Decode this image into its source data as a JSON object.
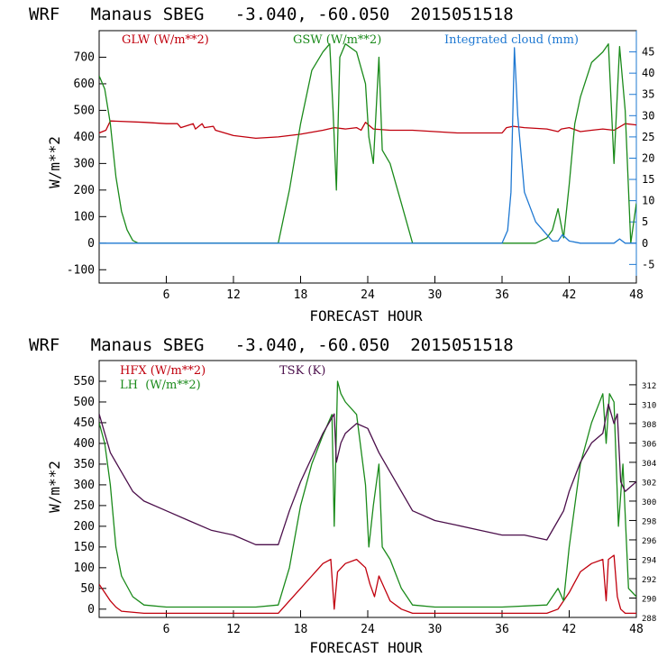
{
  "chart_data": [
    {
      "type": "line",
      "title": "WRF   Manaus SBEG   -3.040, -60.050  2015051518",
      "xlabel": "FORECAST HOUR",
      "ylabel": "W/m**2",
      "xlim": [
        0,
        48
      ],
      "ylim": [
        -150,
        800
      ],
      "y2lim": [
        -9.375,
        50
      ],
      "x_ticks": [
        "6",
        "12",
        "18",
        "24",
        "30",
        "36",
        "42",
        "48"
      ],
      "y_ticks": [
        "-100",
        "0",
        "100",
        "200",
        "300",
        "400",
        "500",
        "600",
        "700"
      ],
      "y2_ticks": [
        "-5",
        "0",
        "5",
        "10",
        "15",
        "20",
        "25",
        "30",
        "35",
        "40",
        "45"
      ],
      "grid": false,
      "legend_position": "top",
      "series": [
        {
          "name": "GLW (W/m**2)",
          "axis": "left",
          "color": "#c0000d",
          "x": [
            0,
            0.6,
            1,
            4,
            6,
            7,
            7.3,
            8.4,
            8.6,
            9.2,
            9.4,
            10.2,
            10.4,
            12,
            14,
            16,
            18,
            20,
            21,
            22,
            23,
            23.4,
            23.8,
            24.5,
            26,
            28,
            30,
            32,
            34,
            36,
            36.4,
            37,
            38,
            40,
            41,
            41.3,
            42,
            43,
            44,
            45,
            46,
            47,
            48
          ],
          "y": [
            415,
            425,
            460,
            455,
            450,
            450,
            435,
            450,
            430,
            450,
            435,
            440,
            425,
            405,
            395,
            400,
            410,
            425,
            435,
            430,
            435,
            425,
            455,
            430,
            425,
            425,
            420,
            415,
            415,
            415,
            435,
            440,
            435,
            430,
            420,
            430,
            435,
            420,
            425,
            430,
            425,
            450,
            445
          ]
        },
        {
          "name": "GSW (W/m**2)",
          "axis": "left",
          "color": "#1a8a1a",
          "x": [
            0,
            0.5,
            1,
            1.5,
            2,
            2.5,
            3,
            3.5,
            4,
            16,
            17,
            18,
            19,
            20,
            20.6,
            20.9,
            21.2,
            21.5,
            22,
            23,
            23.8,
            24.1,
            24.5,
            25,
            25.3,
            26,
            27,
            28,
            39,
            40,
            40.5,
            41,
            41.5,
            42,
            42.5,
            43,
            44,
            45,
            45.5,
            46,
            46.5,
            47,
            47.5,
            48
          ],
          "y": [
            630,
            580,
            450,
            250,
            120,
            50,
            10,
            0,
            0,
            0,
            200,
            450,
            650,
            720,
            750,
            500,
            200,
            700,
            750,
            720,
            600,
            400,
            300,
            700,
            350,
            300,
            150,
            0,
            0,
            20,
            50,
            130,
            20,
            220,
            450,
            550,
            680,
            720,
            750,
            300,
            740,
            500,
            0,
            150
          ]
        },
        {
          "name": "Integrated cloud (mm)",
          "axis": "right",
          "color": "#1e78d2",
          "x": [
            0,
            36,
            36.5,
            36.8,
            37.1,
            37.4,
            38,
            39,
            40,
            40.5,
            41,
            41.4,
            42,
            43,
            46,
            46.5,
            47,
            48
          ],
          "y": [
            0,
            0,
            3,
            12,
            46,
            30,
            12,
            5,
            2,
            0.5,
            0.5,
            2,
            0.5,
            0,
            0,
            1,
            0,
            0
          ]
        }
      ]
    },
    {
      "type": "line",
      "title": "WRF   Manaus SBEG   -3.040, -60.050  2015051518",
      "xlabel": "FORECAST HOUR",
      "ylabel": "W/m**2",
      "xlim": [
        0,
        48
      ],
      "ylim": [
        -20,
        600
      ],
      "y2lim": [
        288,
        314.5
      ],
      "x_ticks": [
        "6",
        "12",
        "18",
        "24",
        "30",
        "36",
        "42",
        "48"
      ],
      "y_ticks": [
        "0",
        "50",
        "100",
        "150",
        "200",
        "250",
        "300",
        "350",
        "400",
        "450",
        "500",
        "550"
      ],
      "y2_ticks": [
        "288",
        "290",
        "292",
        "294",
        "296",
        "298",
        "300",
        "302",
        "304",
        "306",
        "308",
        "310",
        "312"
      ],
      "grid": false,
      "legend_position": "top-left",
      "series": [
        {
          "name": "HFX (W/m**2)",
          "axis": "left",
          "color": "#c0000d",
          "x": [
            0,
            0.5,
            1,
            1.5,
            2,
            4,
            8,
            12,
            16,
            17,
            18,
            19,
            20,
            20.7,
            21,
            21.3,
            22,
            23,
            23.8,
            24.2,
            24.6,
            25,
            26,
            27,
            28,
            30,
            36,
            40,
            41,
            42,
            43,
            44,
            45,
            45.3,
            45.5,
            46,
            46.3,
            46.6,
            47,
            48
          ],
          "y": [
            60,
            40,
            20,
            5,
            -5,
            -10,
            -10,
            -10,
            -10,
            20,
            50,
            80,
            110,
            120,
            0,
            90,
            110,
            120,
            100,
            60,
            30,
            80,
            20,
            0,
            -10,
            -10,
            -10,
            -10,
            0,
            40,
            90,
            110,
            120,
            20,
            120,
            130,
            30,
            0,
            -10,
            -10
          ]
        },
        {
          "name": "LH  (W/m**2)",
          "axis": "left",
          "color": "#1a8a1a",
          "x": [
            0,
            0.5,
            1,
            1.5,
            2,
            3,
            4,
            6,
            10,
            14,
            16,
            17,
            18,
            19,
            20,
            20.8,
            21,
            21.3,
            21.6,
            22,
            23,
            23.8,
            24.1,
            24.5,
            25,
            25.3,
            26,
            27,
            28,
            30,
            36,
            40,
            41,
            41.5,
            42,
            43,
            44,
            45,
            45.3,
            45.6,
            46,
            46.4,
            46.8,
            47.3,
            48
          ],
          "y": [
            450,
            400,
            300,
            150,
            80,
            30,
            10,
            5,
            5,
            5,
            10,
            100,
            250,
            350,
            420,
            470,
            200,
            550,
            520,
            500,
            470,
            300,
            150,
            250,
            350,
            150,
            120,
            50,
            10,
            5,
            5,
            10,
            50,
            20,
            150,
            350,
            450,
            520,
            400,
            520,
            500,
            200,
            350,
            50,
            30
          ]
        },
        {
          "name": "TSK (K)",
          "axis": "right",
          "color": "#4b0f4b",
          "x": [
            0,
            0.5,
            1,
            2,
            3,
            4,
            6,
            8,
            10,
            12,
            14,
            16,
            17,
            18,
            19,
            20,
            21,
            21.2,
            21.6,
            22,
            23,
            24,
            25,
            26,
            28,
            30,
            32,
            34,
            36,
            38,
            40,
            41,
            41.5,
            42,
            43,
            44,
            45,
            45.5,
            46,
            46.3,
            46.6,
            47,
            48
          ],
          "y": [
            309,
            307,
            305,
            303,
            301,
            300,
            299,
            298,
            297,
            296.5,
            295.5,
            295.5,
            299,
            302,
            304.5,
            307,
            309,
            304,
            306,
            307,
            308,
            307.5,
            305,
            303,
            299,
            298,
            297.5,
            297,
            296.5,
            296.5,
            296,
            298,
            299,
            301,
            304,
            306,
            307,
            310,
            308,
            309,
            302,
            301,
            302
          ]
        }
      ]
    }
  ]
}
